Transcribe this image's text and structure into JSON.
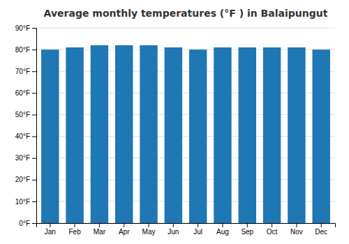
{
  "chart_data": {
    "type": "bar",
    "title": "Average monthly temperatures (°F ) in Balaipungut",
    "categories": [
      "Jan",
      "Feb",
      "Mar",
      "Apr",
      "May",
      "Jun",
      "Jul",
      "Aug",
      "Sep",
      "Oct",
      "Nov",
      "Dec"
    ],
    "values": [
      80,
      81,
      82,
      82,
      82,
      81,
      80,
      81,
      81,
      81,
      81,
      80
    ],
    "ylim": [
      0,
      90
    ],
    "yticks": [
      {
        "value": 0,
        "label": "0°F"
      },
      {
        "value": 10,
        "label": "10°F"
      },
      {
        "value": 20,
        "label": "20°F"
      },
      {
        "value": 30,
        "label": "30°F"
      },
      {
        "value": 40,
        "label": "40°F"
      },
      {
        "value": 50,
        "label": "50°F"
      },
      {
        "value": 60,
        "label": "60°F"
      },
      {
        "value": 70,
        "label": "70°F"
      },
      {
        "value": 80,
        "label": "80°F"
      },
      {
        "value": 90,
        "label": "90°F"
      }
    ],
    "grid": true
  }
}
